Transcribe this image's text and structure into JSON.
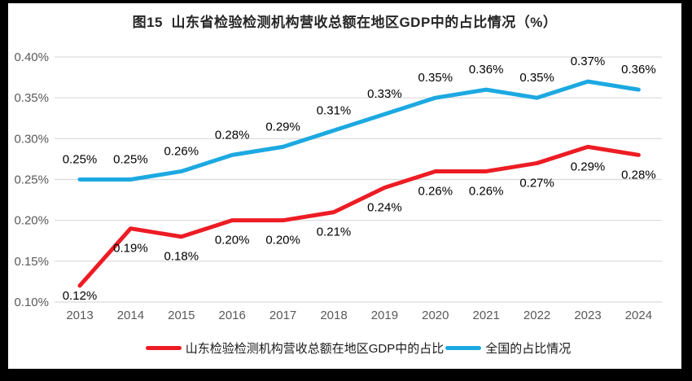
{
  "figure": {
    "title": "图15  山东省检验检测机构营收总额在地区GDP中的占比情况（%）"
  },
  "chart_data": {
    "type": "line",
    "title": "图15  山东省检验检测机构营收总额在地区GDP中的占比情况（%）",
    "categories": [
      "2013",
      "2014",
      "2015",
      "2016",
      "2017",
      "2018",
      "2019",
      "2020",
      "2021",
      "2022",
      "2023",
      "2024"
    ],
    "series": [
      {
        "id": "shandong",
        "name": "山东检验检测机构营收总额在地区GDP中的占比",
        "color": "#ED1C24",
        "label_side": "below",
        "values": [
          0.12,
          0.19,
          0.18,
          0.2,
          0.2,
          0.21,
          0.24,
          0.26,
          0.26,
          0.27,
          0.29,
          0.28
        ],
        "labels": [
          "0.12%",
          "0.19%",
          "0.18%",
          "0.20%",
          "0.20%",
          "0.21%",
          "0.24%",
          "0.26%",
          "0.26%",
          "0.27%",
          "0.29%",
          "0.28%"
        ]
      },
      {
        "id": "national",
        "name": "全国的占比情况",
        "color": "#1CA9E1",
        "label_side": "above",
        "values": [
          0.25,
          0.25,
          0.26,
          0.28,
          0.29,
          0.31,
          0.33,
          0.35,
          0.36,
          0.35,
          0.37,
          0.36
        ],
        "labels": [
          "0.25%",
          "0.25%",
          "0.26%",
          "0.28%",
          "0.29%",
          "0.31%",
          "0.33%",
          "0.35%",
          "0.36%",
          "0.35%",
          "0.37%",
          "0.36%"
        ]
      }
    ],
    "y_ticks": [
      {
        "value": 0.1,
        "label": "0.10%"
      },
      {
        "value": 0.15,
        "label": "0.15%"
      },
      {
        "value": 0.2,
        "label": "0.20%"
      },
      {
        "value": 0.25,
        "label": "0.25%"
      },
      {
        "value": 0.3,
        "label": "0.30%"
      },
      {
        "value": 0.35,
        "label": "0.35%"
      },
      {
        "value": 0.4,
        "label": "0.40%"
      }
    ],
    "ylim": [
      0.1,
      0.4
    ],
    "grid": "horizontal",
    "legend_position": "bottom"
  },
  "colors": {
    "grid": "#D9D9D9",
    "tick_text": "#595959",
    "label_text": "#000000",
    "title_text": "#262626",
    "frame": "#000000",
    "background": "#FFFFFF"
  }
}
